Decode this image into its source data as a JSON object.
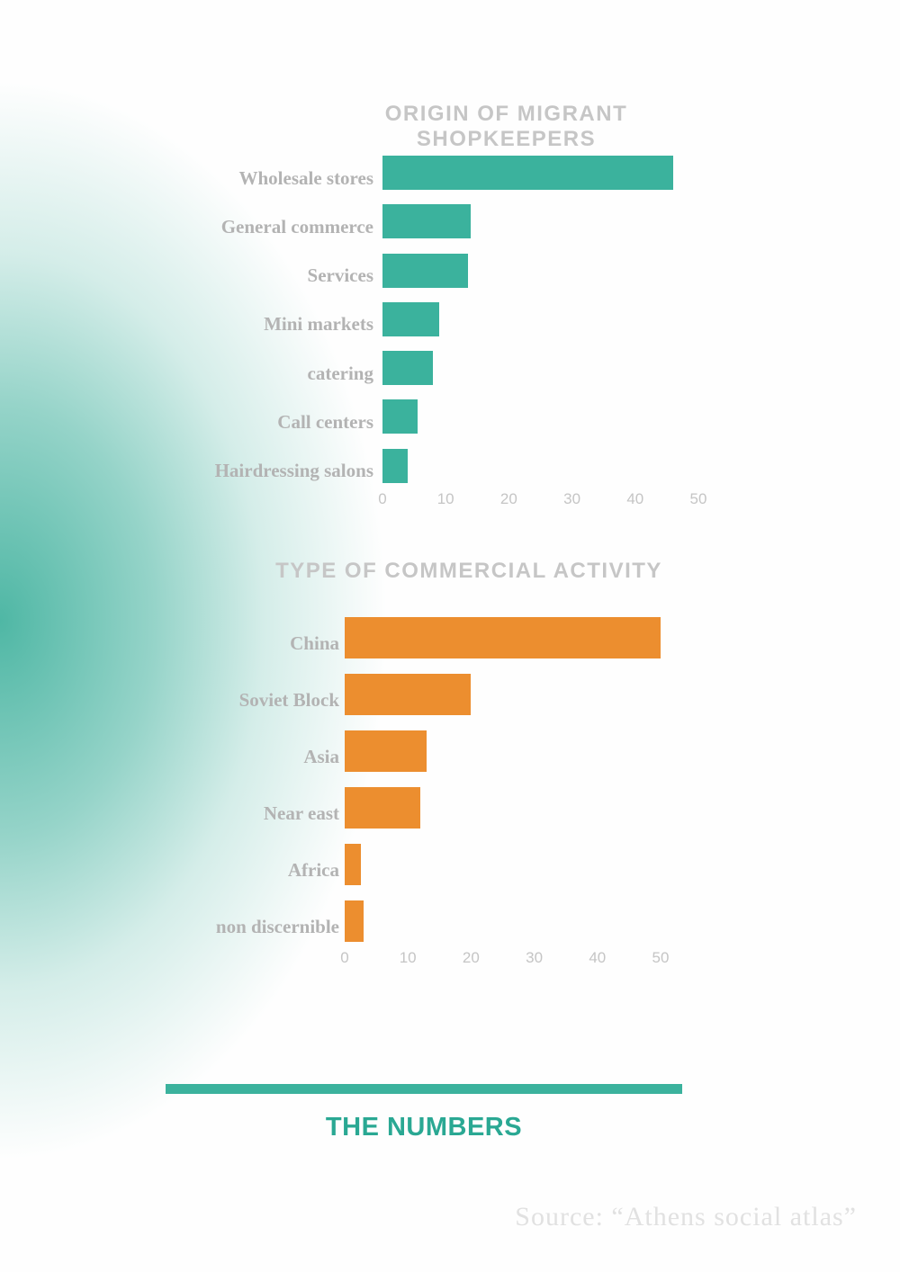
{
  "chart_data": [
    {
      "type": "bar",
      "orientation": "horizontal",
      "title": "ORIGIN OF MIGRANT SHOPKEEPERS",
      "categories": [
        "Wholesale stores",
        "General commerce",
        "Services",
        "Mini markets",
        "catering",
        "Call centers",
        "Hairdressing salons"
      ],
      "values": [
        46,
        14,
        13.5,
        9,
        8,
        5.5,
        4
      ],
      "xlim": [
        0,
        55
      ],
      "x_ticks": [
        0,
        10,
        20,
        30,
        40,
        50
      ],
      "bar_color": "#3bb29d",
      "grid": false,
      "legend": "none"
    },
    {
      "type": "bar",
      "orientation": "horizontal",
      "title": "TYPE OF COMMERCIAL ACTIVITY",
      "categories": [
        "China",
        "Soviet Block",
        "Asia",
        "Near east",
        "Africa",
        "non discernible"
      ],
      "values": [
        50,
        20,
        13,
        12,
        2.5,
        3
      ],
      "xlim": [
        0,
        55
      ],
      "x_ticks": [
        0,
        10,
        20,
        30,
        40,
        50
      ],
      "bar_color": "#ec8e2f",
      "grid": false,
      "legend": "none"
    }
  ],
  "footer": {
    "heading": "THE NUMBERS",
    "source": "Source: “Athens social atlas”",
    "accent_color": "#3bb29d"
  }
}
